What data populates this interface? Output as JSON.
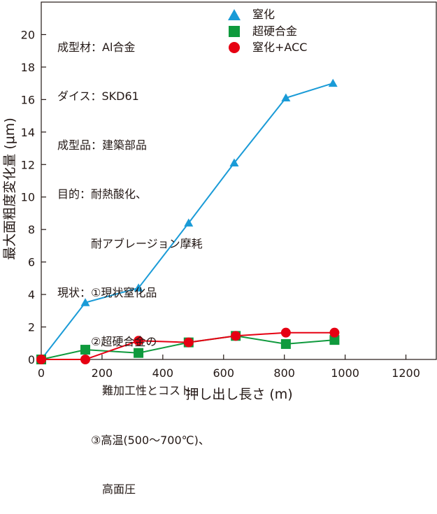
{
  "chart_data": {
    "type": "line",
    "xlabel": "押し出し長さ (m)",
    "ylabel": "最大面粗度変化量 (μm)",
    "xlim": [
      0,
      1300
    ],
    "ylim": [
      0,
      22
    ],
    "xticks": [
      0,
      200,
      400,
      600,
      800,
      1000,
      1200
    ],
    "yticks": [
      0,
      2,
      4,
      6,
      8,
      10,
      12,
      14,
      16,
      18,
      20
    ],
    "grid": false,
    "legend_position": "top-center",
    "series": [
      {
        "name": "窒化",
        "marker": "triangle",
        "color": "#1a9bd7",
        "x": [
          0,
          145,
          320,
          485,
          635,
          805,
          960
        ],
        "y": [
          0,
          3.5,
          4.4,
          8.4,
          12.1,
          16.1,
          17.0
        ]
      },
      {
        "name": "超硬合金",
        "marker": "square",
        "color": "#0f9a3d",
        "x": [
          0,
          145,
          320,
          485,
          640,
          805,
          965
        ],
        "y": [
          0,
          0.6,
          0.4,
          1.05,
          1.45,
          0.95,
          1.2
        ]
      },
      {
        "name": "窒化+ACC",
        "marker": "circle",
        "color": "#e60012",
        "x": [
          0,
          145,
          320,
          485,
          640,
          805,
          965
        ],
        "y": [
          0,
          0,
          1.15,
          1.05,
          1.45,
          1.65,
          1.65
        ]
      }
    ],
    "annotations": {
      "conditions": [
        "成型材：Al合金",
        "ダイス：SKD61",
        "成型品：建築部品",
        "目的：耐熱酸化、",
        "　　　耐アブレージョン摩耗",
        "現状：①現状窒化品",
        "　　　②超硬合金の",
        "　　　　難加工性とコスト",
        "　　　③高温(500～700℃)、",
        "　　　　高面圧"
      ]
    }
  }
}
